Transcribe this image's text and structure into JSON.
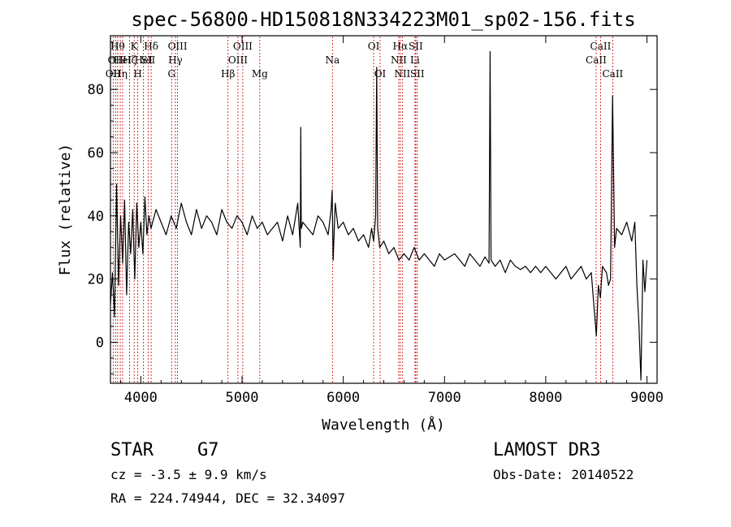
{
  "chart_data": {
    "type": "line",
    "title": "spec-56800-HD150818N334223M01_sp02-156.fits",
    "xlabel": "Wavelength (Å)",
    "ylabel": "Flux (relative)",
    "xlim": [
      3700,
      9100
    ],
    "ylim": [
      -13,
      97
    ],
    "xticks": [
      4000,
      5000,
      6000,
      7000,
      8000,
      9000
    ],
    "yticks": [
      0,
      20,
      40,
      60,
      80
    ],
    "line_color": "#000000",
    "marker_color": "#cc0000",
    "series": [
      {
        "name": "flux",
        "x": [
          3700,
          3720,
          3740,
          3760,
          3780,
          3800,
          3820,
          3840,
          3860,
          3880,
          3900,
          3920,
          3940,
          3960,
          3980,
          4000,
          4020,
          4040,
          4060,
          4080,
          4100,
          4150,
          4200,
          4250,
          4300,
          4350,
          4400,
          4450,
          4500,
          4550,
          4600,
          4650,
          4700,
          4750,
          4800,
          4850,
          4900,
          4950,
          5000,
          5050,
          5100,
          5150,
          5200,
          5250,
          5300,
          5350,
          5400,
          5450,
          5500,
          5550,
          5575,
          5580,
          5585,
          5600,
          5650,
          5700,
          5750,
          5800,
          5850,
          5880,
          5890,
          5900,
          5920,
          5950,
          6000,
          6050,
          6100,
          6150,
          6200,
          6250,
          6280,
          6300,
          6320,
          6330,
          6340,
          6360,
          6400,
          6450,
          6500,
          6550,
          6600,
          6650,
          6700,
          6750,
          6800,
          6850,
          6900,
          6950,
          7000,
          7050,
          7100,
          7150,
          7200,
          7250,
          7300,
          7350,
          7400,
          7440,
          7450,
          7460,
          7500,
          7550,
          7600,
          7650,
          7700,
          7750,
          7800,
          7850,
          7900,
          7950,
          8000,
          8050,
          8100,
          8150,
          8200,
          8250,
          8300,
          8350,
          8400,
          8450,
          8480,
          8500,
          8520,
          8540,
          8560,
          8600,
          8620,
          8640,
          8660,
          8680,
          8700,
          8750,
          8800,
          8850,
          8880,
          8900,
          8920,
          8940,
          8960,
          8980,
          9000
        ],
        "y": [
          12,
          22,
          8,
          50,
          18,
          40,
          25,
          45,
          15,
          38,
          28,
          42,
          20,
          44,
          30,
          38,
          28,
          46,
          34,
          40,
          36,
          42,
          38,
          34,
          40,
          36,
          44,
          38,
          34,
          42,
          36,
          40,
          38,
          34,
          42,
          38,
          36,
          40,
          38,
          34,
          40,
          36,
          38,
          34,
          36,
          38,
          32,
          40,
          34,
          44,
          30,
          68,
          36,
          38,
          36,
          34,
          40,
          38,
          34,
          42,
          48,
          26,
          44,
          36,
          38,
          34,
          36,
          32,
          34,
          30,
          36,
          32,
          40,
          87,
          36,
          30,
          32,
          28,
          30,
          26,
          28,
          26,
          30,
          26,
          28,
          26,
          24,
          28,
          26,
          27,
          28,
          26,
          24,
          28,
          26,
          24,
          27,
          25,
          92,
          26,
          24,
          26,
          22,
          26,
          24,
          23,
          24,
          22,
          24,
          22,
          24,
          22,
          20,
          22,
          24,
          20,
          22,
          24,
          20,
          22,
          10,
          2,
          18,
          14,
          24,
          22,
          18,
          20,
          78,
          30,
          36,
          34,
          38,
          32,
          38,
          18,
          6,
          -12,
          26,
          16,
          26
        ]
      }
    ],
    "lines": [
      {
        "x": 3727,
        "labels": [
          "OII"
        ],
        "row": 2
      },
      {
        "x": 3750,
        "labels": [
          "OII"
        ],
        "row": 1
      },
      {
        "x": 3771,
        "labels": [
          "Hθ"
        ],
        "row": 0
      },
      {
        "x": 3797,
        "labels": [
          "Hη"
        ],
        "row": 2
      },
      {
        "x": 3820,
        "labels": [
          "HeI"
        ],
        "row": 1
      },
      {
        "x": 3889,
        "labels": [
          "Hζ"
        ],
        "row": 1
      },
      {
        "x": 3934,
        "labels": [
          "K"
        ],
        "row": 0
      },
      {
        "x": 3970,
        "labels": [
          "H"
        ],
        "row": 2
      },
      {
        "x": 4026,
        "labels": [
          "HeI"
        ],
        "row": 1
      },
      {
        "x": 4072,
        "labels": [
          "SII"
        ],
        "row": 1
      },
      {
        "x": 4102,
        "labels": [
          "Hδ"
        ],
        "row": 0
      },
      {
        "x": 4304,
        "labels": [
          "G"
        ],
        "row": 2
      },
      {
        "x": 4341,
        "labels": [
          "Hγ"
        ],
        "row": 1
      },
      {
        "x": 4363,
        "labels": [
          "OIII"
        ],
        "row": 0
      },
      {
        "x": 4861,
        "labels": [
          "Hβ"
        ],
        "row": 2
      },
      {
        "x": 4959,
        "labels": [
          "OIII"
        ],
        "row": 1
      },
      {
        "x": 5007,
        "labels": [
          "OIII"
        ],
        "row": 0
      },
      {
        "x": 5175,
        "labels": [
          "Mg"
        ],
        "row": 2
      },
      {
        "x": 5893,
        "labels": [
          "Na"
        ],
        "row": 1
      },
      {
        "x": 6300,
        "labels": [
          "OI"
        ],
        "row": 0
      },
      {
        "x": 6364,
        "labels": [
          "OI"
        ],
        "row": 2
      },
      {
        "x": 6548,
        "labels": [
          "NII"
        ],
        "row": 1
      },
      {
        "x": 6563,
        "labels": [
          "Hα"
        ],
        "row": 0
      },
      {
        "x": 6583,
        "labels": [
          "NII"
        ],
        "row": 2
      },
      {
        "x": 6708,
        "labels": [
          "Li"
        ],
        "row": 1
      },
      {
        "x": 6716,
        "labels": [
          "SII"
        ],
        "row": 0
      },
      {
        "x": 6731,
        "labels": [
          "SII"
        ],
        "row": 2
      },
      {
        "x": 8498,
        "labels": [
          "CaII"
        ],
        "row": 1
      },
      {
        "x": 8542,
        "labels": [
          "CaII"
        ],
        "row": 0
      },
      {
        "x": 8662,
        "labels": [
          "CaII"
        ],
        "row": 2
      }
    ]
  },
  "info": {
    "object_class": "STAR",
    "subclass": "G7",
    "cz": "cz = -3.5 ± 9.9 km/s",
    "coords": "RA = 224.74944, DEC =  32.34097",
    "survey": "LAMOST DR3",
    "obs_date": "Obs-Date: 20140522"
  }
}
